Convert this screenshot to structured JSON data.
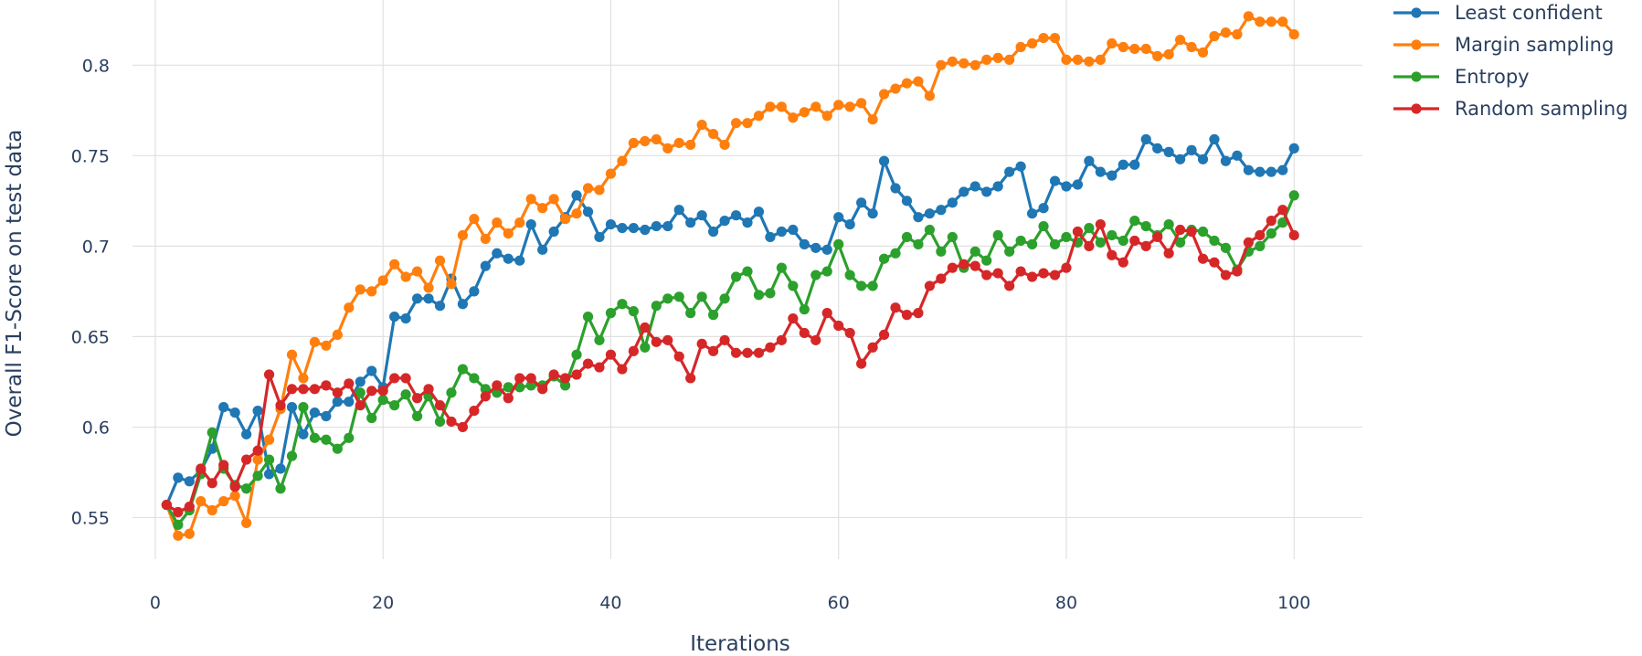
{
  "chart_data": {
    "type": "line",
    "xlabel": "Iterations",
    "ylabel": "Overall F1-Score on test data",
    "xlim": [
      -2,
      106
    ],
    "ylim": [
      0.527,
      0.836
    ],
    "xticks": [
      0,
      20,
      40,
      60,
      80,
      100
    ],
    "xtick_labels": [
      "0",
      "20",
      "40",
      "60",
      "80",
      "100"
    ],
    "yticks": [
      0.55,
      0.6,
      0.65,
      0.7,
      0.75,
      0.8
    ],
    "ytick_labels": [
      "0.55",
      "0.6",
      "0.65",
      "0.7",
      "0.75",
      "0.8"
    ],
    "grid": true,
    "legend_position": "top-right",
    "x": [
      1,
      2,
      3,
      4,
      5,
      6,
      7,
      8,
      9,
      10,
      11,
      12,
      13,
      14,
      15,
      16,
      17,
      18,
      19,
      20,
      21,
      22,
      23,
      24,
      25,
      26,
      27,
      28,
      29,
      30,
      31,
      32,
      33,
      34,
      35,
      36,
      37,
      38,
      39,
      40,
      41,
      42,
      43,
      44,
      45,
      46,
      47,
      48,
      49,
      50,
      51,
      52,
      53,
      54,
      55,
      56,
      57,
      58,
      59,
      60,
      61,
      62,
      63,
      64,
      65,
      66,
      67,
      68,
      69,
      70,
      71,
      72,
      73,
      74,
      75,
      76,
      77,
      78,
      79,
      80,
      81,
      82,
      83,
      84,
      85,
      86,
      87,
      88,
      89,
      90,
      91,
      92,
      93,
      94,
      95,
      96,
      97,
      98,
      99,
      100
    ],
    "series": [
      {
        "name": "Least confident",
        "color": "#1f77b4",
        "values": [
          0.557,
          0.572,
          0.57,
          0.576,
          0.588,
          0.611,
          0.608,
          0.596,
          0.609,
          0.574,
          0.577,
          0.611,
          0.596,
          0.608,
          0.606,
          0.614,
          0.614,
          0.625,
          0.631,
          0.622,
          0.661,
          0.66,
          0.671,
          0.671,
          0.667,
          0.682,
          0.668,
          0.675,
          0.689,
          0.696,
          0.693,
          0.692,
          0.712,
          0.698,
          0.708,
          0.716,
          0.728,
          0.719,
          0.705,
          0.712,
          0.71,
          0.71,
          0.709,
          0.711,
          0.711,
          0.72,
          0.713,
          0.717,
          0.708,
          0.714,
          0.717,
          0.713,
          0.719,
          0.705,
          0.708,
          0.709,
          0.701,
          0.699,
          0.698,
          0.716,
          0.712,
          0.724,
          0.718,
          0.747,
          0.732,
          0.725,
          0.716,
          0.718,
          0.72,
          0.724,
          0.73,
          0.733,
          0.73,
          0.733,
          0.741,
          0.744,
          0.718,
          0.721,
          0.736,
          0.733,
          0.734,
          0.747,
          0.741,
          0.739,
          0.745,
          0.745,
          0.759,
          0.754,
          0.752,
          0.748,
          0.753,
          0.748,
          0.759,
          0.747,
          0.75,
          0.742,
          0.741,
          0.741,
          0.742,
          0.754
        ]
      },
      {
        "name": "Margin sampling",
        "color": "#ff7f0e",
        "values": [
          0.557,
          0.54,
          0.541,
          0.559,
          0.554,
          0.559,
          0.562,
          0.547,
          0.582,
          0.593,
          0.61,
          0.64,
          0.627,
          0.647,
          0.645,
          0.651,
          0.666,
          0.676,
          0.675,
          0.681,
          0.69,
          0.683,
          0.686,
          0.677,
          0.692,
          0.679,
          0.706,
          0.715,
          0.704,
          0.713,
          0.707,
          0.713,
          0.726,
          0.721,
          0.726,
          0.715,
          0.718,
          0.732,
          0.731,
          0.74,
          0.747,
          0.757,
          0.758,
          0.759,
          0.754,
          0.757,
          0.756,
          0.767,
          0.762,
          0.756,
          0.768,
          0.768,
          0.772,
          0.777,
          0.777,
          0.771,
          0.774,
          0.777,
          0.772,
          0.778,
          0.777,
          0.779,
          0.77,
          0.784,
          0.787,
          0.79,
          0.791,
          0.783,
          0.8,
          0.802,
          0.801,
          0.8,
          0.803,
          0.804,
          0.803,
          0.81,
          0.812,
          0.815,
          0.815,
          0.803,
          0.803,
          0.802,
          0.803,
          0.812,
          0.81,
          0.809,
          0.809,
          0.805,
          0.806,
          0.814,
          0.81,
          0.807,
          0.816,
          0.818,
          0.817,
          0.827,
          0.824,
          0.824,
          0.824,
          0.817
        ]
      },
      {
        "name": "Entropy",
        "color": "#2ca02c",
        "values": [
          0.557,
          0.546,
          0.554,
          0.574,
          0.597,
          0.577,
          0.568,
          0.566,
          0.573,
          0.582,
          0.566,
          0.584,
          0.611,
          0.594,
          0.593,
          0.588,
          0.594,
          0.619,
          0.605,
          0.615,
          0.612,
          0.618,
          0.606,
          0.617,
          0.603,
          0.619,
          0.632,
          0.627,
          0.621,
          0.619,
          0.622,
          0.622,
          0.623,
          0.623,
          0.628,
          0.623,
          0.64,
          0.661,
          0.648,
          0.663,
          0.668,
          0.664,
          0.644,
          0.667,
          0.671,
          0.672,
          0.663,
          0.672,
          0.662,
          0.671,
          0.683,
          0.686,
          0.673,
          0.674,
          0.688,
          0.678,
          0.665,
          0.684,
          0.686,
          0.701,
          0.684,
          0.678,
          0.678,
          0.693,
          0.696,
          0.705,
          0.701,
          0.709,
          0.697,
          0.705,
          0.688,
          0.697,
          0.692,
          0.706,
          0.697,
          0.703,
          0.701,
          0.711,
          0.701,
          0.705,
          0.702,
          0.71,
          0.702,
          0.706,
          0.703,
          0.714,
          0.711,
          0.706,
          0.712,
          0.702,
          0.709,
          0.708,
          0.703,
          0.699,
          0.687,
          0.697,
          0.7,
          0.707,
          0.713,
          0.728
        ]
      },
      {
        "name": "Random sampling",
        "color": "#d62728",
        "values": [
          0.557,
          0.553,
          0.556,
          0.577,
          0.569,
          0.579,
          0.567,
          0.582,
          0.587,
          0.629,
          0.612,
          0.621,
          0.621,
          0.621,
          0.623,
          0.619,
          0.624,
          0.612,
          0.62,
          0.62,
          0.627,
          0.627,
          0.616,
          0.621,
          0.612,
          0.603,
          0.6,
          0.609,
          0.617,
          0.623,
          0.616,
          0.627,
          0.627,
          0.621,
          0.629,
          0.627,
          0.629,
          0.635,
          0.633,
          0.64,
          0.632,
          0.642,
          0.655,
          0.647,
          0.648,
          0.639,
          0.627,
          0.646,
          0.642,
          0.648,
          0.641,
          0.641,
          0.641,
          0.644,
          0.648,
          0.66,
          0.652,
          0.648,
          0.663,
          0.656,
          0.652,
          0.635,
          0.644,
          0.651,
          0.666,
          0.662,
          0.663,
          0.678,
          0.682,
          0.688,
          0.69,
          0.689,
          0.684,
          0.685,
          0.678,
          0.686,
          0.683,
          0.685,
          0.684,
          0.688,
          0.708,
          0.7,
          0.712,
          0.695,
          0.691,
          0.703,
          0.7,
          0.705,
          0.696,
          0.709,
          0.708,
          0.693,
          0.691,
          0.684,
          0.686,
          0.702,
          0.706,
          0.714,
          0.72,
          0.706
        ]
      }
    ]
  }
}
